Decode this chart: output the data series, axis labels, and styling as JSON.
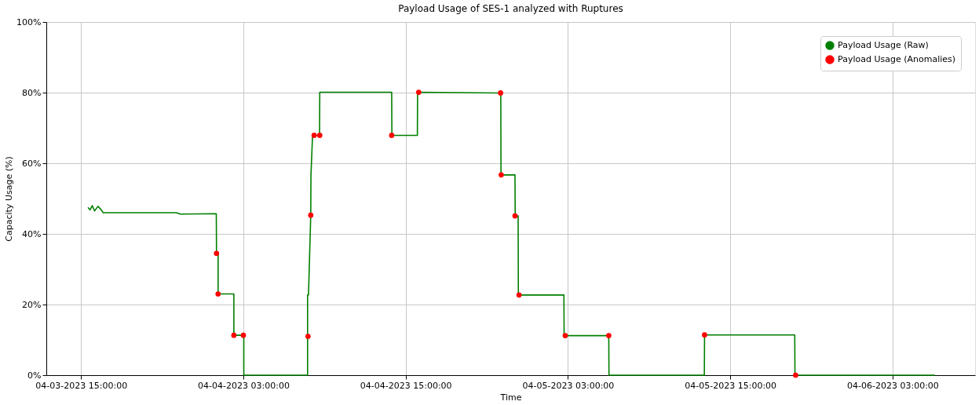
{
  "chart_data": {
    "type": "line",
    "title": "Payload Usage of SES-1 analyzed with Ruptures",
    "xlabel": "Time",
    "ylabel": "Capacity Usage (%)",
    "xlim": [
      "2023-04-03T12:26",
      "2023-04-06T09:06"
    ],
    "xticks": [
      {
        "value": "2023-04-03T15:00",
        "label": "04-03-2023 15:00:00"
      },
      {
        "value": "2023-04-04T03:00",
        "label": "04-04-2023 03:00:00"
      },
      {
        "value": "2023-04-04T15:00",
        "label": "04-04-2023 15:00:00"
      },
      {
        "value": "2023-04-05T03:00",
        "label": "04-05-2023 03:00:00"
      },
      {
        "value": "2023-04-05T15:00",
        "label": "04-05-2023 15:00:00"
      },
      {
        "value": "2023-04-06T03:00",
        "label": "04-06-2023 03:00:00"
      }
    ],
    "ylim": [
      0,
      100
    ],
    "yticks": [
      {
        "value": 0,
        "label": "0%"
      },
      {
        "value": 20,
        "label": "20%"
      },
      {
        "value": 40,
        "label": "40%"
      },
      {
        "value": 60,
        "label": "60%"
      },
      {
        "value": 80,
        "label": "80%"
      },
      {
        "value": 100,
        "label": "100%"
      }
    ],
    "grid": true,
    "legend": "top right",
    "series": [
      {
        "name": "Payload Usage (Raw)",
        "color": "#008000",
        "marker": "none",
        "line_style": "solid",
        "x": [
          "2023-04-03T15:31",
          "2023-04-03T15:40",
          "2023-04-03T15:50",
          "2023-04-03T16:00",
          "2023-04-03T16:15",
          "2023-04-03T16:30",
          "2023-04-03T16:38",
          "2023-04-03T22:03",
          "2023-04-03T22:20",
          "2023-04-04T01:00",
          "2023-04-04T01:01",
          "2023-04-04T01:08",
          "2023-04-04T01:08",
          "2023-04-04T02:18",
          "2023-04-04T02:18",
          "2023-04-04T03:02",
          "2023-04-04T03:02",
          "2023-04-04T07:45",
          "2023-04-04T07:45",
          "2023-04-04T07:49",
          "2023-04-04T07:59",
          "2023-04-04T08:00",
          "2023-04-04T08:07",
          "2023-04-04T08:38",
          "2023-04-04T08:39",
          "2023-04-04T13:58",
          "2023-04-04T13:59",
          "2023-04-04T15:52",
          "2023-04-04T15:53",
          "2023-04-04T22:02",
          "2023-04-04T22:03",
          "2023-04-04T23:05",
          "2023-04-04T23:06",
          "2023-04-04T23:19",
          "2023-04-04T23:20",
          "2023-04-05T02:42",
          "2023-04-05T02:43",
          "2023-04-05T06:01",
          "2023-04-05T06:02",
          "2023-04-05T13:05",
          "2023-04-05T13:06",
          "2023-04-05T19:46",
          "2023-04-05T19:47",
          "2023-04-06T06:08"
        ],
        "values": [
          47.5,
          46.8,
          48.0,
          46.5,
          47.8,
          46.8,
          46.0,
          46.0,
          45.6,
          45.7,
          34.5,
          34.5,
          23.0,
          23.0,
          11.3,
          11.3,
          0,
          0,
          22.7,
          22.7,
          45.3,
          56.7,
          67.9,
          67.9,
          80.1,
          80.1,
          67.9,
          67.9,
          80.1,
          79.9,
          56.7,
          56.7,
          45.1,
          45.1,
          22.7,
          22.7,
          11.2,
          11.2,
          0,
          0,
          11.4,
          11.4,
          0,
          0
        ]
      },
      {
        "name": "Payload Usage (Anomalies)",
        "type": "scatter",
        "color": "#ff0000",
        "marker": "circle",
        "x": [
          "2023-04-04T01:01",
          "2023-04-04T01:08",
          "2023-04-04T02:18",
          "2023-04-04T03:00",
          "2023-04-04T07:47",
          "2023-04-04T07:59",
          "2023-04-04T08:14",
          "2023-04-04T08:39",
          "2023-04-04T13:58",
          "2023-04-04T15:58",
          "2023-04-04T22:01",
          "2023-04-04T22:04",
          "2023-04-04T23:05",
          "2023-04-04T23:23",
          "2023-04-05T02:48",
          "2023-04-05T06:01",
          "2023-04-05T13:06",
          "2023-04-05T19:50"
        ],
        "values": [
          34.5,
          23.0,
          11.3,
          11.3,
          11.0,
          45.3,
          67.9,
          67.9,
          67.9,
          80.1,
          79.9,
          56.7,
          45.1,
          22.7,
          11.2,
          11.2,
          11.4,
          0
        ]
      }
    ]
  }
}
